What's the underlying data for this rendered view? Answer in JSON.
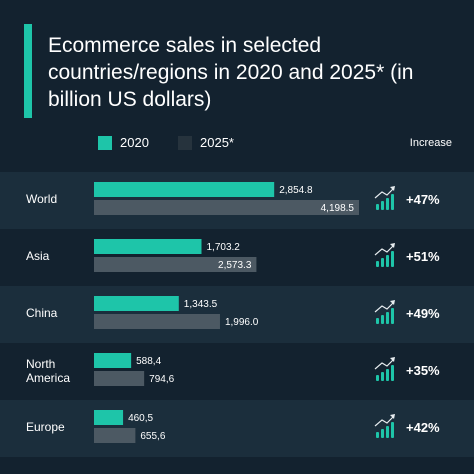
{
  "header": {
    "title": "Ecommerce sales in selected countries/regions in 2020 and 2025* (in billion US dollars)"
  },
  "legend": {
    "increase_label": "Increase"
  },
  "colors": {
    "accent": "#1ec5a9",
    "series_2020": "#1ec5a9",
    "series_2025": "#4c5963",
    "background": "#13222f",
    "band": "#1b2e3c",
    "icon": "#1ec5a9"
  },
  "chart_data": {
    "type": "bar",
    "orientation": "horizontal",
    "categories": [
      "World",
      "Asia",
      "China",
      "North America",
      "Europe"
    ],
    "series": [
      {
        "name": "2020",
        "values": [
          2854.8,
          1703.2,
          1343.5,
          588.4,
          460.5
        ],
        "labels": [
          "2,854.8",
          "1,703.2",
          "1,343.5",
          "588,4",
          "460,5"
        ]
      },
      {
        "name": "2025*",
        "values": [
          4198.5,
          2573.3,
          1996.0,
          794.6,
          655.6
        ],
        "labels": [
          "4,198.5",
          "2,573.3",
          "1,996.0",
          "794,6",
          "655,6"
        ]
      }
    ],
    "increase": [
      "+47%",
      "+51%",
      "+49%",
      "+35%",
      "+42%"
    ],
    "legend_position": "top",
    "grid": false
  }
}
